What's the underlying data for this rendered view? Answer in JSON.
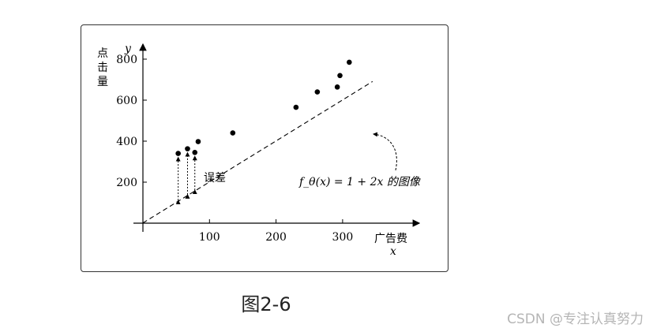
{
  "chart_data": {
    "type": "scatter",
    "xlabel": "广告费",
    "xsymbol": "x",
    "ylabel": "点击量",
    "ysymbol": "y",
    "xticks": [
      100,
      200,
      300
    ],
    "yticks": [
      200,
      400,
      600,
      800
    ],
    "xlim": [
      0,
      410
    ],
    "ylim": [
      0,
      880
    ],
    "points": [
      {
        "x": 53,
        "y": 340
      },
      {
        "x": 67,
        "y": 363
      },
      {
        "x": 78,
        "y": 345
      },
      {
        "x": 83,
        "y": 398
      },
      {
        "x": 135,
        "y": 440
      },
      {
        "x": 230,
        "y": 565
      },
      {
        "x": 262,
        "y": 640
      },
      {
        "x": 292,
        "y": 664
      },
      {
        "x": 296,
        "y": 720
      },
      {
        "x": 310,
        "y": 785
      }
    ],
    "model_line": {
      "intercept": 1,
      "slope": 2,
      "x_range": [
        0,
        345
      ],
      "style": "dashed"
    },
    "error_arrows_x": [
      53,
      67,
      78
    ],
    "annotations": {
      "error": "误差",
      "function_label": "f_θ(x) = 1 + 2x 的图像"
    },
    "grid": false
  },
  "caption": "图2-6",
  "watermark": "CSDN @专注认真努力"
}
